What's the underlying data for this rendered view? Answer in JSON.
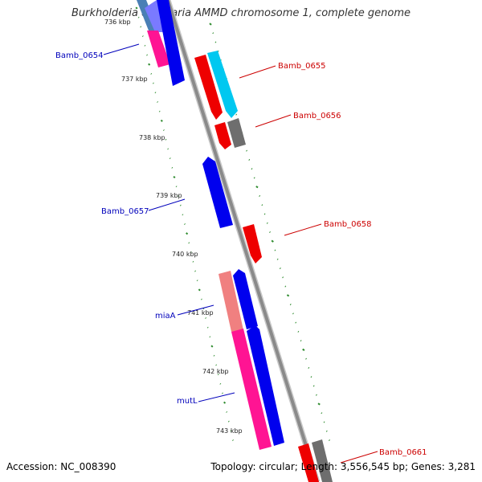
{
  "title": "Burkholderia ambifaria AMMD chromosome 1, complete genome",
  "footer": {
    "accession": "Accession: NC_008390",
    "summary": "Topology: circular; Length: 3,556,545 bp; Genes: 3,281"
  },
  "colors": {
    "backbone": "#888888",
    "kbp_tick": "#2e8b2e",
    "left_label": "#0000bb",
    "right_label": "#cc0000"
  },
  "kbp_labels": [
    "736 kbp",
    "737 kbp",
    "738 kbp",
    "739 kbp",
    "740 kbp",
    "741 kbp",
    "742 kbp",
    "743 kbp"
  ],
  "genes": [
    {
      "label": "Bamb_0654",
      "side": "left"
    },
    {
      "label": "Bamb_0655",
      "side": "right"
    },
    {
      "label": "Bamb_0656",
      "side": "right"
    },
    {
      "label": "Bamb_0657",
      "side": "left"
    },
    {
      "label": "Bamb_0658",
      "side": "right"
    },
    {
      "label": "miaA",
      "side": "left"
    },
    {
      "label": "mutL",
      "side": "left"
    },
    {
      "label": "Bamb_0661",
      "side": "right"
    }
  ]
}
